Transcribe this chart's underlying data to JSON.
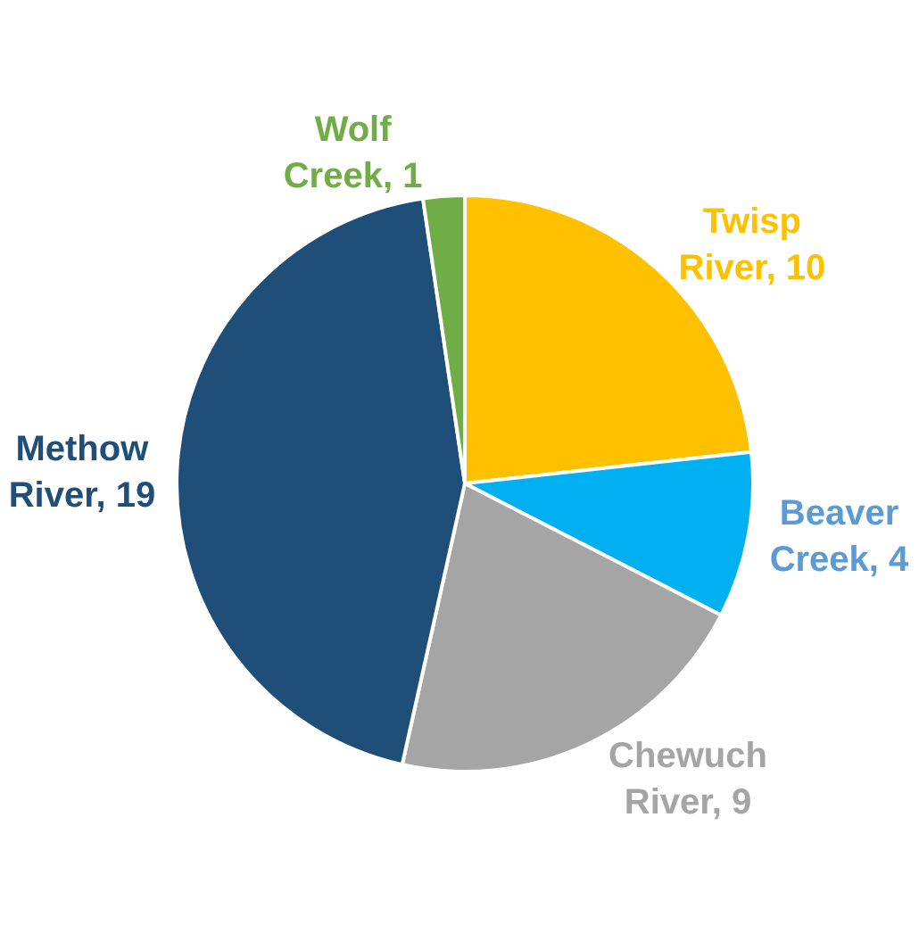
{
  "chart_data": {
    "type": "pie",
    "categories": [
      "Twisp River",
      "Beaver Creek",
      "Chewuch River",
      "Methow River",
      "Wolf Creek"
    ],
    "values": [
      10,
      4,
      9,
      19,
      1
    ],
    "colors": [
      "#ffc000",
      "#00b0f0",
      "#a5a5a5",
      "#1f4e79",
      "#70ad47"
    ],
    "value_labels": [
      ", 10",
      ", 4",
      ", 9",
      ", 19",
      ", 1"
    ],
    "legend": false
  }
}
